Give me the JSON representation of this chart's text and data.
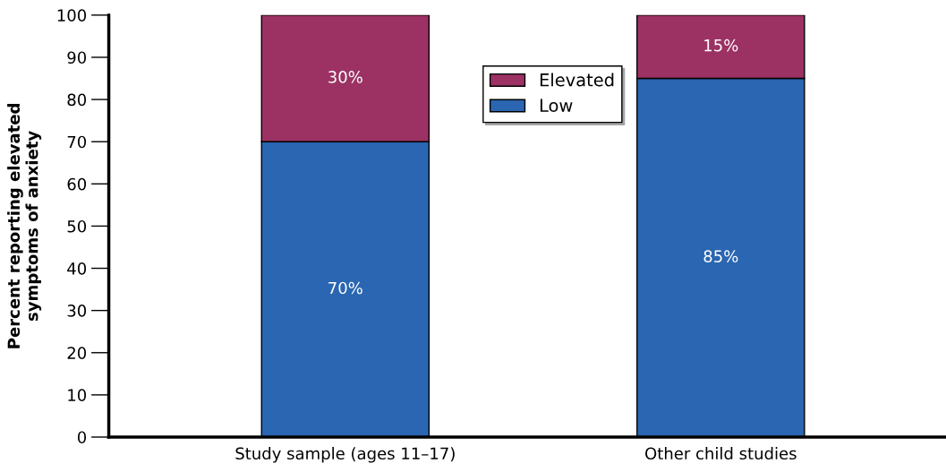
{
  "chart_data": {
    "type": "bar",
    "stacked": true,
    "ylabel": "Percent reporting elevated\nsymptoms of anxiety",
    "categories": [
      "Study sample (ages 11–17)",
      "Other child studies"
    ],
    "series": [
      {
        "name": "Low",
        "color": "#2a66b1",
        "values": [
          70,
          85
        ],
        "value_labels": [
          "70%",
          "85%"
        ]
      },
      {
        "name": "Elevated",
        "color": "#9b3263",
        "values": [
          30,
          15
        ],
        "value_labels": [
          "30%",
          "15%"
        ]
      }
    ],
    "ylim": [
      0,
      100
    ],
    "yticks": [
      0,
      10,
      20,
      30,
      40,
      50,
      60,
      70,
      80,
      90,
      100
    ],
    "grid": false,
    "legend": "top"
  }
}
